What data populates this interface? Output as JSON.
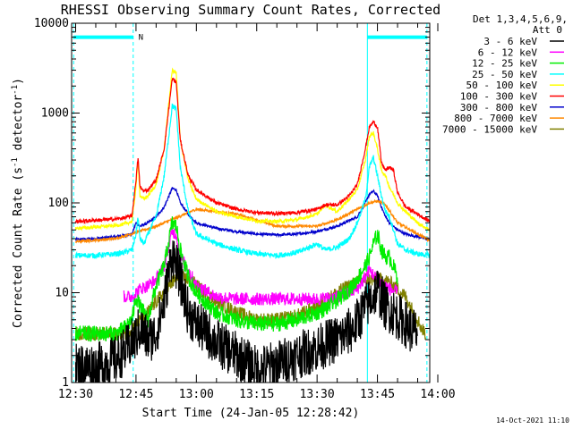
{
  "chart_data": {
    "type": "line",
    "title": "RHESSI Observing Summary Count Rates, Corrected",
    "xlabel": "Start Time (24-Jan-05 12:28:42)",
    "ylabel": "Corrected Count Rate (s⁻¹ detector⁻¹)",
    "ylabel_parts": {
      "main": "Corrected Count Rate (s",
      "exp1": "-1",
      "mid": " detector",
      "exp2": "-1",
      "end": ")"
    },
    "yscale": "log",
    "ylim": [
      1,
      10000
    ],
    "xlim_minutes": [
      -1,
      88
    ],
    "x_ticks": [
      {
        "label": "12:30",
        "minute": 0
      },
      {
        "label": "12:45",
        "minute": 15
      },
      {
        "label": "13:00",
        "minute": 30
      },
      {
        "label": "13:15",
        "minute": 45
      },
      {
        "label": "13:30",
        "minute": 60
      },
      {
        "label": "13:45",
        "minute": 75
      },
      {
        "label": "14:00",
        "minute": 90
      }
    ],
    "y_ticks": [
      {
        "label": "1",
        "value": 1
      },
      {
        "label": "10",
        "value": 10
      },
      {
        "label": "100",
        "value": 100
      },
      {
        "label": "1000",
        "value": 1000
      },
      {
        "label": "10000",
        "value": 10000
      }
    ],
    "legend_header": [
      "Det 1,3,4,5,6,9,",
      "Att 0"
    ],
    "timestamp": "14-Oct-2021 11:10",
    "annotations": [
      {
        "text": "N",
        "minute": 16.2
      }
    ],
    "markers": {
      "dashed_vlines_minutes": [
        -0.5,
        14.3,
        87.3
      ],
      "solid_vlines_minutes": [
        72.5
      ],
      "night_bars": [
        {
          "from": -0.5,
          "to": 14.3,
          "value": 7000
        },
        {
          "from": 72.5,
          "to": 87.3,
          "value": 7000
        }
      ]
    },
    "series": [
      {
        "name": "3 - 6 keV",
        "color": "#000000",
        "noise": 0.45,
        "x": [
          0,
          5,
          10,
          12,
          14,
          15,
          16,
          18,
          20,
          22,
          24,
          26,
          28,
          30,
          35,
          40,
          45,
          50,
          55,
          60,
          63,
          66,
          69,
          72,
          73,
          75,
          77,
          79,
          81,
          83,
          85
        ],
        "y": [
          1.5,
          1.5,
          1.8,
          2.2,
          2.8,
          3.2,
          4,
          3,
          3.5,
          8,
          28,
          14,
          6,
          4.5,
          2.8,
          2,
          1.4,
          1.6,
          2,
          2.4,
          2.8,
          3.2,
          4,
          7,
          8,
          11,
          7,
          6,
          5,
          4,
          3.5
        ]
      },
      {
        "name": "6 - 12 keV",
        "color": "#ff00ff",
        "noise": 0.12,
        "x": [
          12,
          14,
          15,
          16,
          18,
          20,
          22,
          24,
          25,
          26,
          28,
          30,
          35,
          40,
          45,
          50,
          55,
          60,
          65,
          68,
          70,
          72,
          73,
          75,
          77,
          78,
          80
        ],
        "y": [
          9,
          9,
          10,
          11,
          12,
          14,
          20,
          48,
          45,
          25,
          18,
          12,
          9,
          8.5,
          8.5,
          8.5,
          8.5,
          8.5,
          9,
          10,
          11,
          15,
          18,
          14,
          12,
          11,
          10
        ]
      },
      {
        "name": "12 - 25 keV",
        "color": "#00ee00",
        "noise": 0.15,
        "x": [
          0,
          5,
          10,
          12,
          14,
          15,
          16,
          17,
          18,
          19,
          20,
          22,
          24,
          25,
          26,
          28,
          30,
          35,
          40,
          45,
          50,
          55,
          60,
          63,
          66,
          69,
          72,
          73,
          74,
          75,
          76,
          77,
          78,
          80
        ],
        "y": [
          3.5,
          3.5,
          3.5,
          4,
          5,
          9,
          7,
          6,
          5,
          8,
          12,
          20,
          60,
          55,
          30,
          15,
          10,
          6,
          5,
          4.5,
          4.5,
          5,
          6,
          7,
          9,
          12,
          20,
          25,
          35,
          45,
          30,
          25,
          25,
          15
        ]
      },
      {
        "name": "25 - 50 keV",
        "color": "#00ffff",
        "noise": 0.03,
        "x": [
          0,
          5,
          10,
          12,
          14,
          15,
          15.5,
          16,
          17,
          18,
          20,
          22,
          24,
          25,
          26,
          28,
          30,
          35,
          40,
          45,
          50,
          55,
          60,
          62,
          65,
          68,
          70,
          72,
          73,
          74,
          75,
          76,
          77,
          78,
          79,
          80,
          82,
          85,
          88
        ],
        "y": [
          26,
          26,
          27,
          28,
          30,
          45,
          70,
          40,
          35,
          45,
          70,
          200,
          1200,
          1100,
          250,
          80,
          45,
          35,
          30,
          27,
          26,
          28,
          35,
          30,
          32,
          40,
          60,
          110,
          250,
          320,
          200,
          120,
          80,
          70,
          50,
          35,
          30,
          27,
          26
        ]
      },
      {
        "name": "50 - 100 keV",
        "color": "#ffff00",
        "noise": 0.02,
        "x": [
          0,
          5,
          10,
          12,
          14,
          15,
          15.5,
          16,
          17,
          18,
          20,
          22,
          24,
          25,
          26,
          28,
          30,
          35,
          40,
          45,
          50,
          55,
          60,
          62,
          65,
          68,
          70,
          72,
          73,
          74,
          75,
          76,
          77,
          78,
          80,
          82,
          85,
          88
        ],
        "y": [
          52,
          54,
          56,
          58,
          62,
          150,
          300,
          120,
          110,
          120,
          160,
          400,
          3000,
          2800,
          500,
          180,
          110,
          80,
          70,
          63,
          62,
          65,
          75,
          95,
          80,
          110,
          140,
          300,
          550,
          600,
          400,
          230,
          200,
          150,
          100,
          80,
          60,
          50
        ]
      },
      {
        "name": "100 - 300 keV",
        "color": "#ff0000",
        "noise": 0.02,
        "x": [
          0,
          5,
          10,
          12,
          14,
          15,
          15.5,
          16,
          17,
          18,
          20,
          22,
          24,
          25,
          26,
          28,
          30,
          35,
          40,
          45,
          50,
          55,
          60,
          62,
          65,
          68,
          70,
          72,
          73,
          74,
          75,
          76,
          77,
          78,
          79,
          80,
          82,
          85,
          88
        ],
        "y": [
          62,
          64,
          66,
          68,
          72,
          180,
          320,
          150,
          135,
          140,
          180,
          400,
          2400,
          2200,
          500,
          200,
          140,
          100,
          85,
          78,
          76,
          78,
          85,
          95,
          95,
          120,
          160,
          400,
          700,
          800,
          700,
          280,
          230,
          250,
          230,
          130,
          90,
          75,
          62
        ]
      },
      {
        "name": "300 - 800 keV",
        "color": "#0000cc",
        "noise": 0.015,
        "x": [
          0,
          5,
          10,
          14,
          15,
          16,
          18,
          20,
          22,
          24,
          25,
          26,
          28,
          30,
          35,
          40,
          45,
          50,
          55,
          60,
          65,
          70,
          72,
          73,
          74,
          75,
          76,
          77,
          78,
          80,
          82,
          85,
          88
        ],
        "y": [
          39,
          40,
          42,
          45,
          60,
          55,
          60,
          70,
          90,
          145,
          140,
          100,
          75,
          60,
          52,
          48,
          45,
          44,
          45,
          48,
          55,
          70,
          100,
          125,
          135,
          120,
          90,
          70,
          60,
          50,
          45,
          42,
          39
        ]
      },
      {
        "name": "800 - 7000 keV",
        "color": "#ff8800",
        "noise": 0.015,
        "x": [
          0,
          10,
          20,
          30,
          40,
          50,
          60,
          65,
          70,
          73,
          75,
          77,
          80,
          85,
          88
        ],
        "y": [
          37,
          40,
          55,
          85,
          75,
          55,
          55,
          65,
          85,
          100,
          105,
          95,
          60,
          45,
          38
        ]
      },
      {
        "name": "7000 - 15000 keV",
        "color": "#808000",
        "noise": 0.08,
        "x": [
          0,
          5,
          10,
          12,
          14,
          18,
          20,
          22,
          24,
          26,
          28,
          30,
          32,
          35,
          40,
          45,
          50,
          55,
          60,
          65,
          68,
          70,
          72,
          74,
          76,
          78,
          80,
          82,
          84,
          85,
          86,
          87
        ],
        "y": [
          3.5,
          3.5,
          3.5,
          3.5,
          4,
          6,
          8,
          10,
          13,
          15,
          14,
          12,
          10,
          8,
          6,
          5,
          5,
          5.5,
          7,
          10,
          12,
          13,
          14,
          14,
          14,
          13,
          11,
          9,
          6,
          5,
          4,
          3.5
        ]
      }
    ]
  }
}
